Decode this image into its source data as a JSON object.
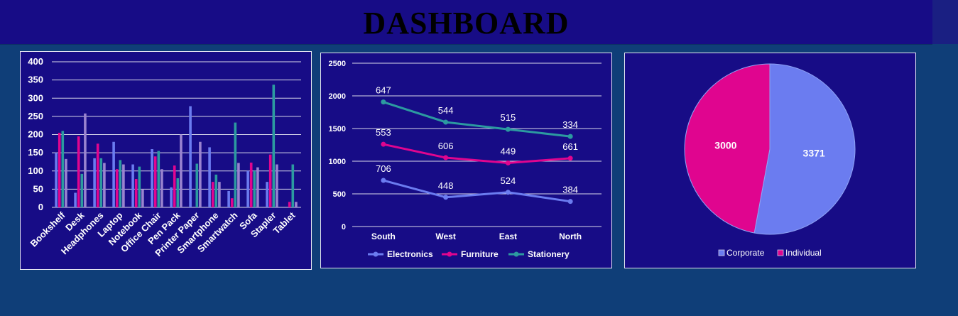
{
  "header": {
    "title": "DASHBOARD"
  },
  "colors": {
    "electronics": "#6b7cf0",
    "furniture": "#e0058f",
    "stationery": "#2c9aa0",
    "other": "#9a83cf",
    "corporate": "#6b7cf0",
    "individual": "#e0058f"
  },
  "chart_data": [
    {
      "type": "bar",
      "categories": [
        "Bookshelf",
        "Desk",
        "Headphones",
        "Laptop",
        "Notebook",
        "Office Chair",
        "Pen Pack",
        "Printer Paper",
        "Smartphone",
        "Smartwatch",
        "Sofa",
        "Stapler",
        "Tablet"
      ],
      "series": [
        {
          "values": [
            150,
            40,
            135,
            180,
            118,
            160,
            55,
            278,
            165,
            45,
            100,
            70,
            0
          ]
        },
        {
          "values": [
            205,
            195,
            175,
            105,
            78,
            140,
            115,
            0,
            70,
            25,
            123,
            145,
            15
          ]
        },
        {
          "values": [
            210,
            92,
            135,
            130,
            112,
            155,
            80,
            120,
            90,
            233,
            100,
            337,
            118
          ]
        },
        {
          "values": [
            133,
            258,
            122,
            118,
            50,
            105,
            200,
            180,
            70,
            122,
            110,
            118,
            15
          ]
        }
      ],
      "ylim": [
        0,
        400
      ],
      "yticks": [
        "0",
        "50",
        "100",
        "150",
        "200",
        "250",
        "300",
        "350",
        "400"
      ],
      "grid": true
    },
    {
      "type": "line",
      "categories": [
        "South",
        "West",
        "East",
        "North"
      ],
      "series": [
        {
          "name": "Electronics",
          "values": [
            706,
            448,
            524,
            384
          ],
          "labels": [
            "706",
            "448",
            "524",
            "384"
          ]
        },
        {
          "name": "Furniture",
          "values": [
            1259,
            1054,
            973,
            1045
          ],
          "labels": [
            "553",
            "606",
            "449",
            "661"
          ]
        },
        {
          "name": "Stationery",
          "values": [
            1906,
            1598,
            1488,
            1379
          ],
          "labels": [
            "647",
            "544",
            "515",
            "334"
          ]
        }
      ],
      "ylim": [
        0,
        2500
      ],
      "yticks": [
        "0",
        "500",
        "1000",
        "1500",
        "2000",
        "2500"
      ],
      "grid": true,
      "legend": "bottom"
    },
    {
      "type": "pie",
      "slices": [
        {
          "name": "Corporate",
          "value": 3371,
          "label": "3371"
        },
        {
          "name": "Individual",
          "value": 3000,
          "label": "3000"
        }
      ],
      "legend": "bottom"
    }
  ]
}
